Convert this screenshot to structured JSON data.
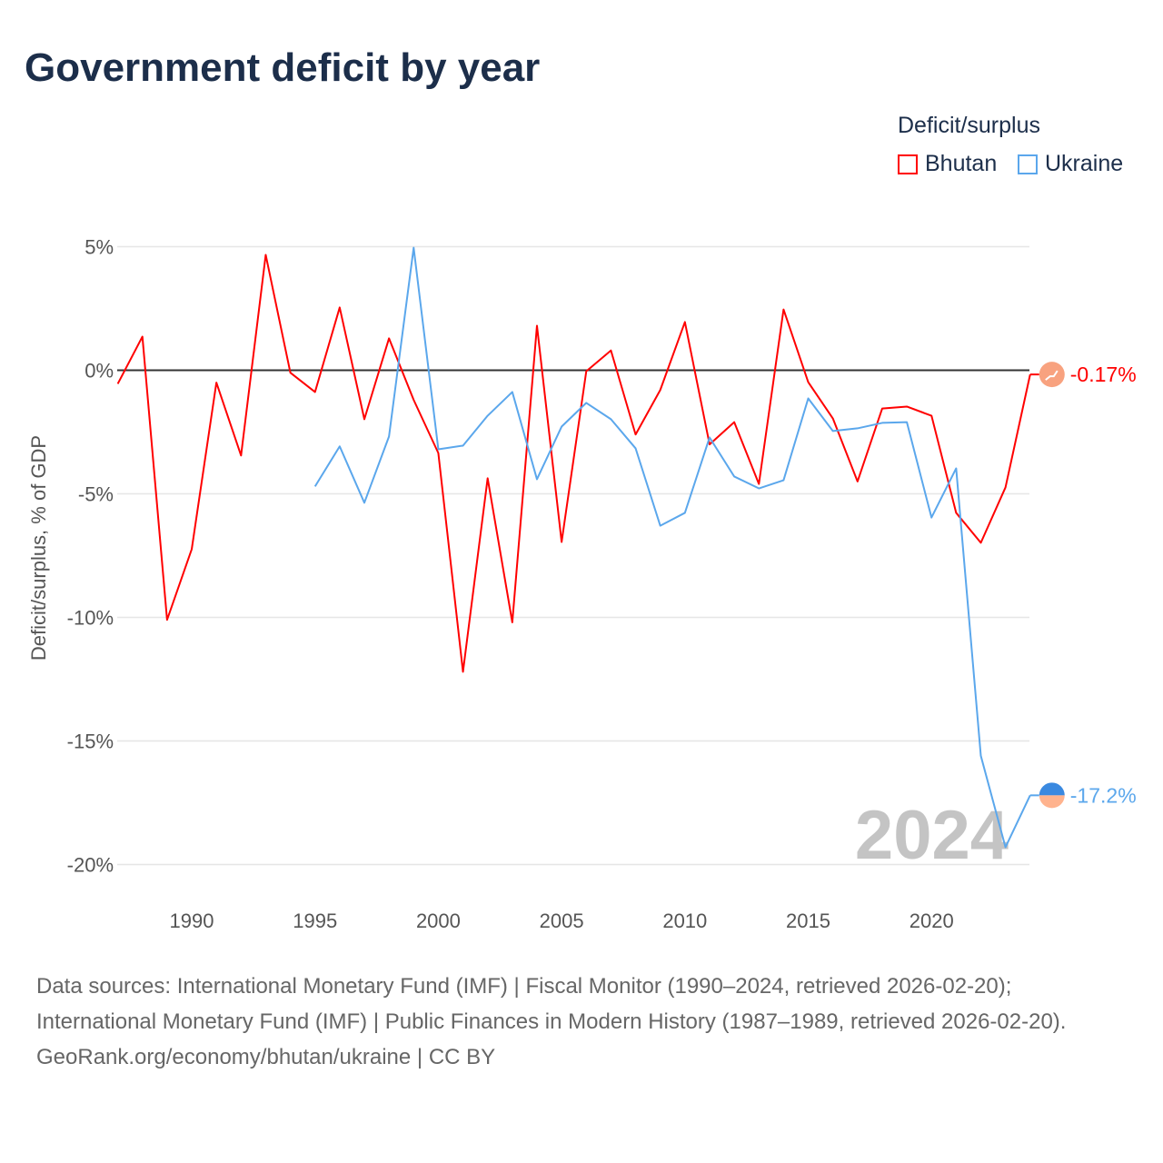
{
  "title": "Government deficit by year",
  "legend": {
    "title": "Deficit/surplus",
    "items": [
      {
        "label": "Bhutan",
        "color": "#ff0000"
      },
      {
        "label": "Ukraine",
        "color": "#5ba7ec"
      }
    ]
  },
  "chart_data": {
    "type": "line",
    "title": "Government deficit by year",
    "xlabel": "",
    "ylabel": "Deficit/surplus, % of GDP",
    "xlim": [
      1987,
      2024
    ],
    "ylim": [
      -21,
      5.5
    ],
    "yticks": [
      5,
      0,
      -5,
      -10,
      -15,
      -20
    ],
    "ytick_labels": [
      "5%",
      "0%",
      "-5%",
      "-10%",
      "-15%",
      "-20%"
    ],
    "xticks": [
      1990,
      1995,
      2000,
      2005,
      2010,
      2015,
      2020
    ],
    "xtick_labels": [
      "1990",
      "1995",
      "2000",
      "2005",
      "2010",
      "2015",
      "2020"
    ],
    "year_watermark": "2024",
    "series": [
      {
        "name": "Bhutan",
        "color": "#ff0000",
        "end_label": "-0.17%",
        "x": [
          1987,
          1988,
          1989,
          1990,
          1991,
          1992,
          1993,
          1994,
          1995,
          1996,
          1997,
          1998,
          1999,
          2000,
          2001,
          2002,
          2003,
          2004,
          2005,
          2006,
          2007,
          2008,
          2009,
          2010,
          2011,
          2012,
          2013,
          2014,
          2015,
          2016,
          2017,
          2018,
          2019,
          2020,
          2021,
          2022,
          2023,
          2024
        ],
        "y": [
          -0.55,
          1.36,
          -10.1,
          -7.24,
          -0.5,
          -3.45,
          4.67,
          -0.1,
          -0.88,
          2.54,
          -1.98,
          1.29,
          -1.2,
          -3.35,
          -12.2,
          -4.37,
          -10.2,
          1.8,
          -6.95,
          -0.04,
          0.8,
          -2.6,
          -0.8,
          1.95,
          -3.0,
          -2.1,
          -4.6,
          2.46,
          -0.48,
          -1.95,
          -4.5,
          -1.55,
          -1.47,
          -1.84,
          -5.77,
          -6.98,
          -4.74,
          -0.17
        ]
      },
      {
        "name": "Ukraine",
        "color": "#5ba7ec",
        "end_label": "-17.2%",
        "x": [
          1995,
          1996,
          1997,
          1998,
          1999,
          2000,
          2001,
          2002,
          2003,
          2004,
          2005,
          2006,
          2007,
          2008,
          2009,
          2010,
          2011,
          2012,
          2013,
          2014,
          2015,
          2016,
          2017,
          2018,
          2019,
          2020,
          2021,
          2022,
          2023,
          2024
        ],
        "y": [
          -4.7,
          -3.08,
          -5.36,
          -2.68,
          4.96,
          -3.2,
          -3.05,
          -1.84,
          -0.88,
          -4.41,
          -2.28,
          -1.32,
          -1.98,
          -3.16,
          -6.29,
          -5.77,
          -2.72,
          -4.3,
          -4.78,
          -4.45,
          -1.14,
          -2.46,
          -2.35,
          -2.13,
          -2.1,
          -5.96,
          -3.97,
          -15.6,
          -19.3,
          -17.2
        ]
      }
    ]
  },
  "footer": {
    "sources": "Data sources: International Monetary Fund (IMF) | Fiscal Monitor (1990–2024, retrieved 2026-02-20); International Monetary Fund (IMF) | Public Finances in Modern History (1987–1989, retrieved 2026-02-20).",
    "credit": "GeoRank.org/economy/bhutan/ukraine | CC BY"
  }
}
